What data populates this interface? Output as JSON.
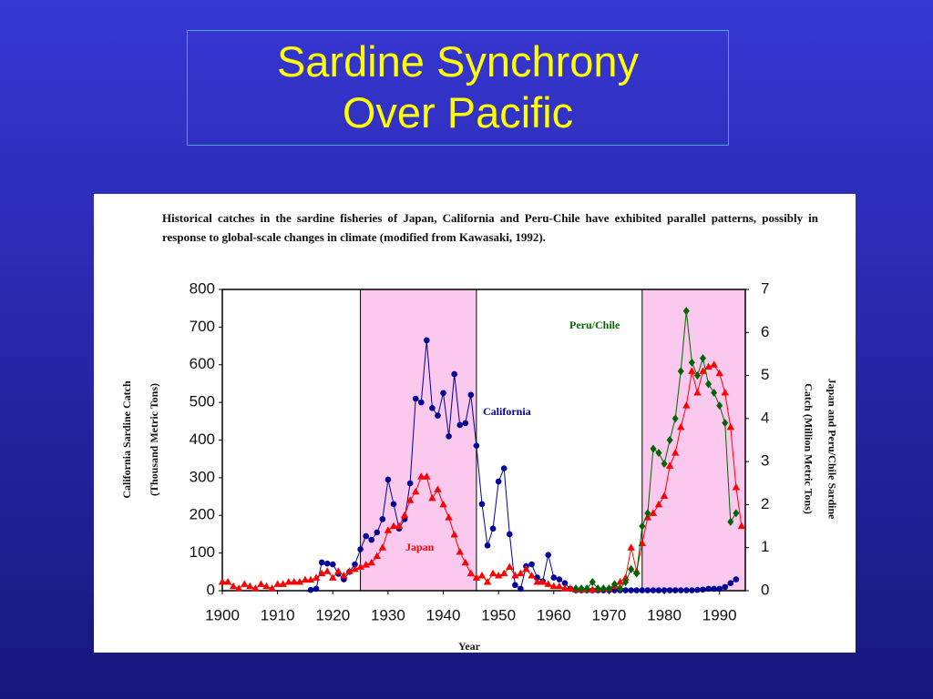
{
  "title": "Sardine Synchrony\nOver Pacific",
  "caption": "Historical catches in the sardine fisheries of Japan, California and Peru-Chile have exhibited parallel patterns, possibly in response to global-scale changes in climate (modified from Kawasaki, 1992).",
  "chart_data": {
    "type": "line",
    "x_label": "Year",
    "y_label": [
      "California Sardine Catch",
      "(Thousand Metric Tons)"
    ],
    "y2_label": [
      "Japan and Peru/Chile Sardine",
      "Catch (Million Metric Tons)"
    ],
    "xlim": [
      1900,
      1995
    ],
    "xticks": [
      1900,
      1910,
      1920,
      1930,
      1940,
      1950,
      1960,
      1970,
      1980,
      1990
    ],
    "ylim": [
      0,
      800
    ],
    "yticks": [
      0,
      100,
      200,
      300,
      400,
      500,
      600,
      700,
      800
    ],
    "y2lim": [
      0,
      7
    ],
    "y2ticks": [
      0,
      1,
      2,
      3,
      4,
      5,
      6,
      7
    ],
    "shaded_periods": [
      [
        1925,
        1946
      ],
      [
        1976,
        1995
      ]
    ],
    "shade_color": "#fbc8ee",
    "series": [
      {
        "name": "California",
        "color": "#000099",
        "marker": "circle",
        "x": [
          1916,
          1917,
          1918,
          1919,
          1920,
          1921,
          1922,
          1923,
          1924,
          1925,
          1926,
          1927,
          1928,
          1929,
          1930,
          1931,
          1932,
          1933,
          1934,
          1935,
          1936,
          1937,
          1938,
          1939,
          1940,
          1941,
          1942,
          1943,
          1944,
          1945,
          1946,
          1947,
          1948,
          1949,
          1950,
          1951,
          1952,
          1953,
          1954,
          1955,
          1956,
          1957,
          1958,
          1959,
          1960,
          1961,
          1962,
          1963,
          1964,
          1965,
          1966,
          1967,
          1968,
          1969,
          1970,
          1971,
          1972,
          1973,
          1974,
          1975,
          1976,
          1977,
          1978,
          1979,
          1980,
          1981,
          1982,
          1983,
          1984,
          1985,
          1986,
          1987,
          1988,
          1989,
          1990,
          1991,
          1992,
          1993
        ],
        "values": [
          2,
          5,
          75,
          72,
          70,
          45,
          30,
          50,
          70,
          110,
          145,
          135,
          155,
          190,
          295,
          230,
          165,
          190,
          285,
          510,
          500,
          665,
          485,
          465,
          525,
          410,
          575,
          440,
          445,
          520,
          385,
          230,
          120,
          165,
          290,
          325,
          150,
          15,
          5,
          65,
          70,
          35,
          25,
          95,
          35,
          30,
          20,
          5,
          1,
          1,
          1,
          1,
          1,
          1,
          1,
          1,
          1,
          1,
          1,
          1,
          1,
          1,
          1,
          1,
          1,
          1,
          1,
          1,
          1,
          1,
          2,
          3,
          5,
          5,
          5,
          10,
          20,
          30
        ]
      },
      {
        "name": "Japan",
        "color": "#ff0000",
        "marker": "triangle",
        "axis": "y2",
        "x": [
          1900,
          1901,
          1902,
          1903,
          1904,
          1905,
          1906,
          1907,
          1908,
          1909,
          1910,
          1911,
          1912,
          1913,
          1914,
          1915,
          1916,
          1917,
          1918,
          1919,
          1920,
          1921,
          1922,
          1923,
          1924,
          1925,
          1926,
          1927,
          1928,
          1929,
          1930,
          1931,
          1932,
          1933,
          1934,
          1935,
          1936,
          1937,
          1938,
          1939,
          1940,
          1941,
          1942,
          1943,
          1944,
          1945,
          1946,
          1947,
          1948,
          1949,
          1950,
          1951,
          1952,
          1953,
          1954,
          1955,
          1956,
          1957,
          1958,
          1959,
          1960,
          1961,
          1962,
          1963,
          1964,
          1965,
          1966,
          1967,
          1968,
          1969,
          1970,
          1971,
          1972,
          1973,
          1974,
          1975,
          1976,
          1977,
          1978,
          1979,
          1980,
          1981,
          1982,
          1983,
          1984,
          1985,
          1986,
          1987,
          1988,
          1989,
          1990,
          1991,
          1992,
          1993,
          1994
        ],
        "values": [
          0.2,
          0.2,
          0.1,
          0.05,
          0.15,
          0.1,
          0.05,
          0.15,
          0.1,
          0.05,
          0.15,
          0.15,
          0.2,
          0.2,
          0.2,
          0.25,
          0.25,
          0.3,
          0.4,
          0.45,
          0.3,
          0.45,
          0.35,
          0.45,
          0.5,
          0.55,
          0.6,
          0.65,
          0.8,
          1.0,
          1.4,
          1.5,
          1.5,
          1.75,
          2.1,
          2.3,
          2.65,
          2.65,
          2.15,
          2.35,
          2.0,
          1.7,
          1.3,
          0.9,
          0.65,
          0.4,
          0.3,
          0.35,
          0.2,
          0.4,
          0.35,
          0.4,
          0.55,
          0.35,
          0.4,
          0.5,
          0.35,
          0.2,
          0.2,
          0.15,
          0.1,
          0.1,
          0.05,
          0.05,
          0.02,
          0.02,
          0.02,
          0.02,
          0.03,
          0.05,
          0.05,
          0.1,
          0.2,
          0.3,
          1.0,
          0.45,
          1.1,
          1.7,
          1.8,
          2.0,
          2.2,
          2.9,
          3.2,
          3.8,
          4.3,
          5.1,
          4.6,
          5.1,
          5.2,
          5.25,
          5.05,
          4.6,
          3.8,
          2.4,
          1.5
        ]
      },
      {
        "name": "Peru/Chile",
        "color": "#006400",
        "marker": "diamond",
        "axis": "y2",
        "x": [
          1964,
          1965,
          1966,
          1967,
          1968,
          1969,
          1970,
          1971,
          1972,
          1973,
          1974,
          1975,
          1976,
          1977,
          1978,
          1979,
          1980,
          1981,
          1982,
          1983,
          1984,
          1985,
          1986,
          1987,
          1988,
          1989,
          1990,
          1991,
          1992,
          1993
        ],
        "values": [
          0.05,
          0.05,
          0.05,
          0.2,
          0.05,
          0.05,
          0.05,
          0.15,
          0.05,
          0.2,
          0.5,
          0.4,
          1.5,
          1.8,
          3.3,
          3.2,
          2.95,
          3.5,
          4.0,
          5.1,
          6.5,
          5.3,
          5.0,
          5.4,
          4.8,
          4.6,
          4.3,
          3.9,
          1.6,
          1.8
        ]
      }
    ]
  }
}
